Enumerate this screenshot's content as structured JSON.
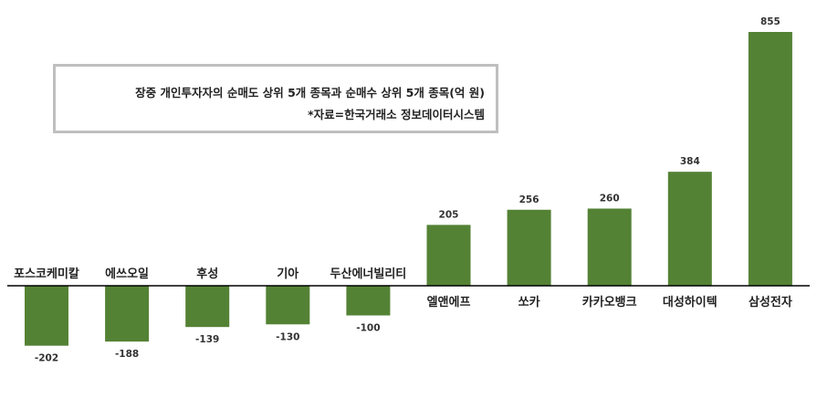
{
  "caption": {
    "line1": "장중 개인투자자의 순매도 상위 5개 종목과 순매수 상위 5개 종목(억 원)",
    "line2": "*자료=한국거래소 정보데이터시스템"
  },
  "colors": {
    "bar": "#548235",
    "axis": "#000000"
  },
  "chart_data": {
    "type": "bar",
    "title": "",
    "xlabel": "",
    "ylabel": "",
    "categories": [
      "포스코케미칼",
      "에쓰오일",
      "후성",
      "기아",
      "두산에너빌리티",
      "엘앤에프",
      "쏘카",
      "카카오뱅크",
      "대성하이텍",
      "삼성전자"
    ],
    "values": [
      -202,
      -188,
      -139,
      -130,
      -100,
      205,
      256,
      260,
      384,
      855
    ],
    "ylim": [
      -250,
      900
    ],
    "grid": false,
    "legend": "none"
  }
}
